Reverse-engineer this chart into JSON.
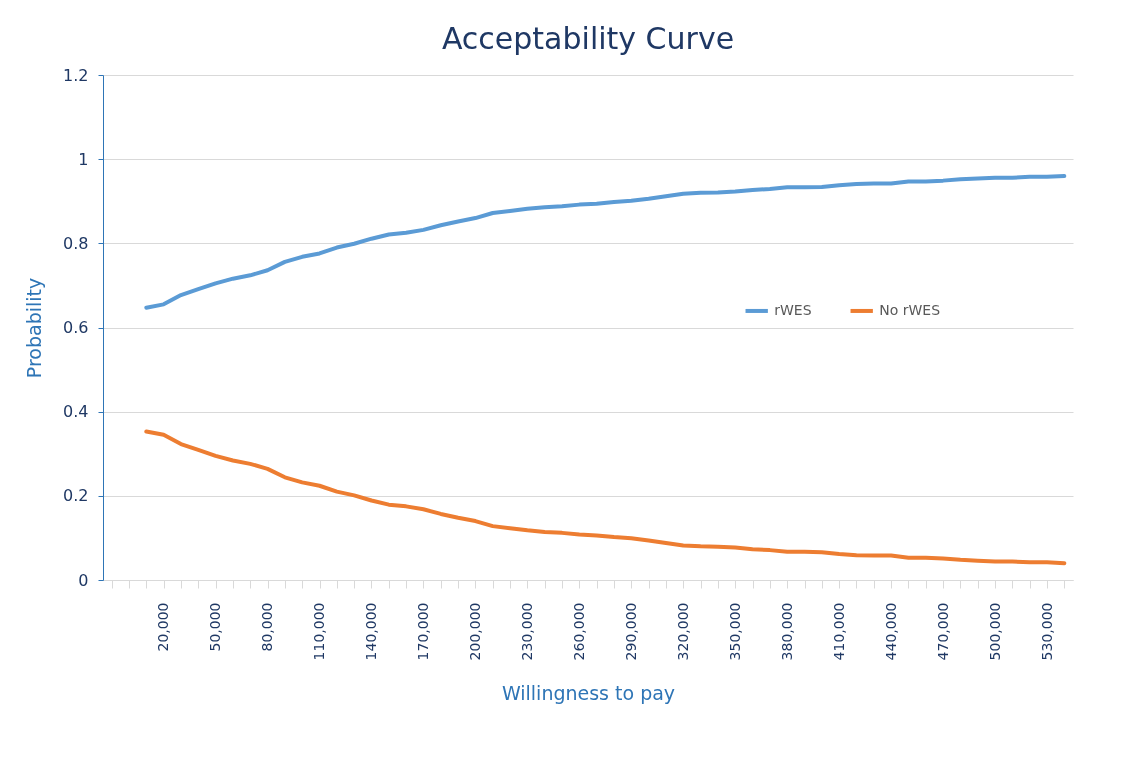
{
  "chart_data": {
    "type": "line",
    "title": "Acceptability Curve",
    "xlabel": "Willingness to pay",
    "ylabel": "Probability",
    "categories": [
      null,
      null,
      null,
      "20,000",
      null,
      null,
      "50,000",
      null,
      null,
      "80,000",
      null,
      null,
      "110,000",
      null,
      null,
      "140,000",
      null,
      null,
      "170,000",
      null,
      null,
      "200,000",
      null,
      null,
      "230,000",
      null,
      null,
      "260,000",
      null,
      null,
      "290,000",
      null,
      null,
      "320,000",
      null,
      null,
      "350,000",
      null,
      null,
      "380,000",
      null,
      null,
      "410,000",
      null,
      null,
      "440,000",
      null,
      null,
      "470,000",
      null,
      null,
      "500,000",
      null,
      null,
      "530,000",
      null
    ],
    "series": [
      {
        "name": "rWES",
        "color": "#5b9bd5",
        "values": [
          null,
          null,
          0.647,
          0.655,
          0.677,
          0.691,
          0.705,
          0.716,
          0.724,
          0.736,
          0.756,
          0.768,
          0.776,
          0.79,
          0.799,
          0.811,
          0.821,
          0.825,
          0.832,
          0.843,
          0.852,
          0.86,
          0.872,
          0.877,
          0.882,
          0.886,
          0.888,
          0.892,
          0.894,
          0.898,
          0.901,
          0.906,
          0.912,
          0.918,
          0.92,
          0.921,
          0.923,
          0.927,
          0.929,
          0.933,
          0.933,
          0.934,
          0.938,
          0.941,
          0.942,
          0.942,
          0.947,
          0.947,
          0.949,
          0.952,
          0.954,
          0.956,
          0.956,
          0.958,
          0.958,
          0.96
        ]
      },
      {
        "name": "No rWES",
        "color": "#ed7d31",
        "values": [
          null,
          null,
          0.353,
          0.345,
          0.323,
          0.309,
          0.295,
          0.284,
          0.276,
          0.264,
          0.244,
          0.232,
          0.224,
          0.21,
          0.201,
          0.189,
          0.179,
          0.175,
          0.168,
          0.157,
          0.148,
          0.14,
          0.128,
          0.123,
          0.118,
          0.114,
          0.112,
          0.108,
          0.106,
          0.102,
          0.099,
          0.094,
          0.088,
          0.082,
          0.08,
          0.079,
          0.077,
          0.073,
          0.071,
          0.067,
          0.067,
          0.066,
          0.062,
          0.059,
          0.058,
          0.058,
          0.053,
          0.053,
          0.051,
          0.048,
          0.046,
          0.044,
          0.044,
          0.042,
          0.042,
          0.04
        ]
      }
    ],
    "ylim": [
      0,
      1.2
    ],
    "yticks": [
      0,
      0.2,
      0.4,
      0.6,
      0.8,
      1,
      1.2
    ],
    "grid": "y",
    "legend": "right",
    "marker": "none",
    "line_style": "solid"
  }
}
